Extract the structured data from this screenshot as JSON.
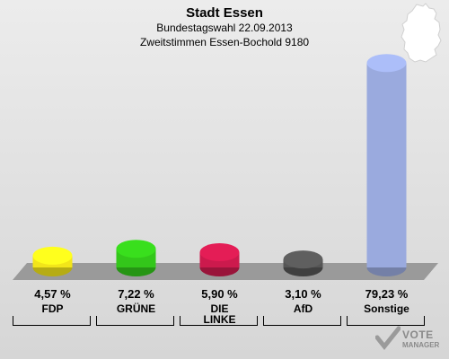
{
  "chart_data": {
    "type": "bar",
    "title": "Stadt Essen",
    "subtitle": "Bundestagswahl 22.09.2013",
    "subtitle2": "Zweitstimmen Essen-Bochold 9180",
    "categories": [
      "FDP",
      "GRÜNE",
      "DIE LINKE",
      "AfD",
      "Sonstige"
    ],
    "values": [
      4.57,
      7.22,
      5.9,
      3.1,
      79.23
    ],
    "value_labels": [
      "4,57 %",
      "7,22 %",
      "5,90 %",
      "3,10 %",
      "79,23 %"
    ],
    "colors": [
      "#f2e51a",
      "#33c71a",
      "#cc1a4d",
      "#555555",
      "#9aaade"
    ],
    "ylim": [
      0,
      80
    ]
  },
  "logo": {
    "line1": "VOTE",
    "line2": "MANAGER"
  }
}
